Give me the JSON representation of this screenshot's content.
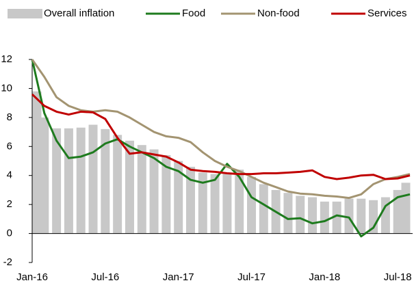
{
  "chart_data": {
    "type": "bar_line",
    "categories": [
      "Jan-16",
      null,
      null,
      null,
      null,
      null,
      "Jul-16",
      null,
      null,
      null,
      null,
      null,
      "Jan-17",
      null,
      null,
      null,
      null,
      null,
      "Jul-17",
      null,
      null,
      null,
      null,
      null,
      "Jan-18",
      null,
      null,
      null,
      null,
      null,
      "Jul-18",
      null
    ],
    "series": [
      {
        "name": "Overall inflation",
        "kind": "bar",
        "color": "#c8c8c8",
        "values": [
          9.8,
          8.0,
          7.25,
          7.25,
          7.3,
          7.5,
          7.2,
          6.8,
          6.4,
          6.1,
          5.8,
          5.4,
          5.0,
          4.6,
          4.2,
          4.1,
          4.1,
          4.4,
          3.9,
          3.4,
          3.0,
          2.8,
          2.6,
          2.5,
          2.2,
          2.2,
          2.4,
          2.4,
          2.3,
          2.5,
          3.0,
          3.5
        ]
      },
      {
        "name": "Food",
        "kind": "line",
        "color": "#1e7b1e",
        "values": [
          12.0,
          8.3,
          6.4,
          5.2,
          5.3,
          5.6,
          6.2,
          6.5,
          6.0,
          5.6,
          5.2,
          4.6,
          4.3,
          3.7,
          3.5,
          3.7,
          4.8,
          3.9,
          2.5,
          2.0,
          1.5,
          1.0,
          1.05,
          0.7,
          0.85,
          1.25,
          1.1,
          -0.2,
          0.4,
          1.9,
          2.5,
          2.7
        ]
      },
      {
        "name": "Non-food",
        "kind": "line",
        "color": "#a39471",
        "values": [
          12.0,
          10.8,
          9.4,
          8.8,
          8.5,
          8.4,
          8.5,
          8.4,
          8.0,
          7.5,
          7.0,
          6.7,
          6.6,
          6.3,
          5.6,
          5.0,
          4.6,
          4.3,
          3.9,
          3.5,
          3.2,
          2.9,
          2.75,
          2.7,
          2.6,
          2.55,
          2.45,
          2.7,
          3.4,
          3.75,
          3.9,
          4.1
        ]
      },
      {
        "name": "Services",
        "kind": "line",
        "color": "#c00000",
        "values": [
          9.6,
          8.8,
          8.4,
          8.2,
          8.4,
          8.35,
          7.9,
          6.6,
          5.5,
          5.6,
          5.45,
          5.3,
          4.9,
          4.4,
          4.3,
          4.25,
          4.15,
          4.1,
          4.1,
          4.15,
          4.15,
          4.2,
          4.25,
          4.35,
          3.9,
          3.75,
          3.85,
          4.0,
          4.05,
          3.75,
          3.8,
          4.0
        ]
      }
    ],
    "ylim": [
      -2,
      12
    ],
    "yticks": [
      -2,
      0,
      2,
      4,
      6,
      8,
      10,
      12
    ],
    "grid": false,
    "legend": "top"
  }
}
